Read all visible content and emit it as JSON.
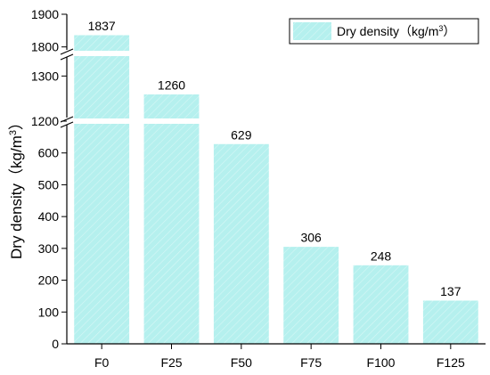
{
  "chart_data": {
    "type": "bar",
    "categories": [
      "F0",
      "F25",
      "F50",
      "F75",
      "F100",
      "F125"
    ],
    "values": [
      1837,
      1260,
      629,
      306,
      248,
      137
    ],
    "value_labels": [
      "1837",
      "1260",
      "629",
      "306",
      "248",
      "137"
    ],
    "ylabel": "Dry density（kg/m3）",
    "ylabel_parts": {
      "main": "Dry density（kg/m",
      "sup": "3",
      "tail": "）"
    },
    "legend": {
      "position": "top-right",
      "main": "Dry density（kg/m",
      "sup": "3",
      "tail": "）"
    },
    "broken_axis": true,
    "segments": [
      {
        "range": [
          0,
          700
        ],
        "ticks": [
          0,
          100,
          200,
          300,
          400,
          500,
          600
        ]
      },
      {
        "range": [
          1200,
          1350
        ],
        "ticks": [
          1200,
          1300
        ]
      },
      {
        "range": [
          1780,
          1900
        ],
        "ticks": [
          1800,
          1900
        ]
      }
    ],
    "bar_color": "#b5f0ee",
    "bar_edge_color": "#ffffff",
    "grid": false
  }
}
